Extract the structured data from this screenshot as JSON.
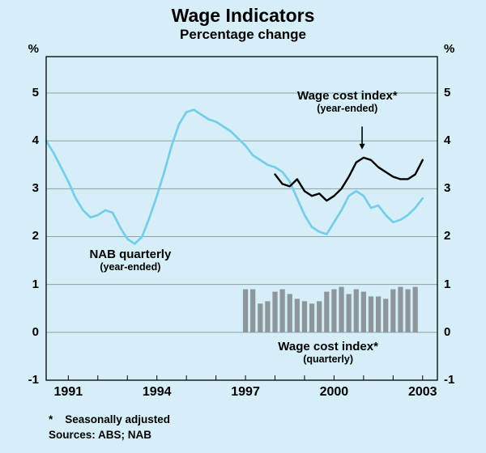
{
  "page": {
    "background_color": "#d5eef7"
  },
  "footnotes": {
    "line1": "*    Seasonally adjusted",
    "line2": "Sources: ABS; NAB"
  },
  "chart_data": {
    "type": "mixed",
    "title": "Wage Indicators",
    "subtitle": "Percentage change",
    "unit_left": "%",
    "unit_right": "%",
    "ylim": [
      -1,
      5
    ],
    "ylim_draw_top": 5.76,
    "y_ticks": [
      5,
      4,
      3,
      2,
      1,
      0,
      -1
    ],
    "xlim": [
      1990.25,
      2003.5
    ],
    "x_tick_labels": [
      1991,
      1994,
      1997,
      2000,
      2003
    ],
    "grid": "horizontal",
    "legend": "none",
    "colors": {
      "background": "#d5eef7",
      "grid": "#8aa1a8",
      "frame": "#000000",
      "nab_line": "#76cde8",
      "wci_line": "#000000",
      "bars": "#8d979b",
      "text": "#000000"
    },
    "series": [
      {
        "name": "NAB quarterly (year-ended)",
        "type": "line",
        "color_key": "nab_line",
        "x_start": 1990.25,
        "x_step": 0.25,
        "values": [
          4.0,
          3.75,
          3.45,
          3.15,
          2.8,
          2.55,
          2.4,
          2.45,
          2.55,
          2.5,
          2.2,
          1.95,
          1.85,
          2.0,
          2.4,
          2.85,
          3.35,
          3.9,
          4.35,
          4.6,
          4.65,
          4.55,
          4.45,
          4.4,
          4.3,
          4.2,
          4.05,
          3.9,
          3.7,
          3.6,
          3.5,
          3.45,
          3.35,
          3.15,
          2.8,
          2.45,
          2.2,
          2.1,
          2.05,
          2.3,
          2.55,
          2.85,
          2.95,
          2.85,
          2.6,
          2.65,
          2.45,
          2.3,
          2.35,
          2.45,
          2.6,
          2.8
        ]
      },
      {
        "name": "Wage cost index* (year-ended)",
        "type": "line",
        "color_key": "wci_line",
        "x_start": 1998.0,
        "x_step": 0.25,
        "values": [
          3.3,
          3.1,
          3.05,
          3.2,
          2.95,
          2.85,
          2.9,
          2.75,
          2.85,
          3.0,
          3.25,
          3.55,
          3.65,
          3.6,
          3.45,
          3.35,
          3.25,
          3.2,
          3.2,
          3.3,
          3.6
        ]
      },
      {
        "name": "Wage cost index* (quarterly)",
        "type": "bar",
        "color_key": "bars",
        "x_start": 1997.0,
        "x_step": 0.25,
        "values": [
          0.9,
          0.9,
          0.6,
          0.65,
          0.85,
          0.9,
          0.8,
          0.7,
          0.65,
          0.6,
          0.65,
          0.85,
          0.9,
          0.95,
          0.8,
          0.9,
          0.85,
          0.75,
          0.75,
          0.7,
          0.9,
          0.95,
          0.9,
          0.95
        ]
      }
    ],
    "annotations": [
      {
        "line1": "Wage cost index*",
        "line2": "(year-ended)",
        "x": 2000.45,
        "y": 4.82
      },
      {
        "line1": "NAB quarterly",
        "line2": "(year-ended)",
        "x": 1993.1,
        "y": 1.5
      },
      {
        "line1": "Wage cost index*",
        "line2": "(quarterly)",
        "x": 1999.8,
        "y": -0.42
      }
    ],
    "arrow": {
      "x": 2000.95,
      "y_from": 4.3,
      "y_to": 3.82
    }
  }
}
